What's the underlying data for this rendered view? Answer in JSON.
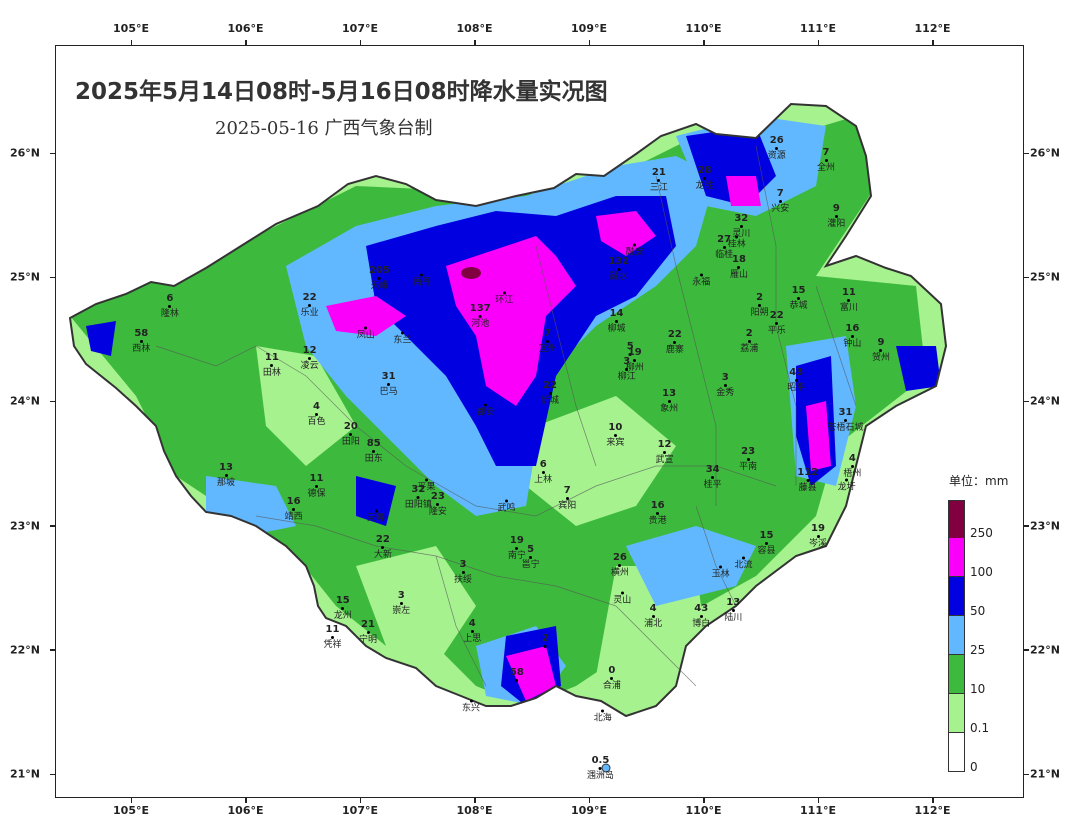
{
  "title": "2025年5月14日08时-5月16日08时降水量实况图",
  "subtitle": "2025-05-16  广西气象台制",
  "axes": {
    "lon_labels": [
      "105°E",
      "106°E",
      "107°E",
      "108°E",
      "109°E",
      "110°E",
      "111°E",
      "112°E"
    ],
    "lat_labels": [
      "26°N",
      "25°N",
      "24°N",
      "23°N",
      "22°N",
      "21°N"
    ]
  },
  "legend": {
    "unit_label": "单位：mm",
    "levels": [
      {
        "label": "0",
        "color": "#ffffff"
      },
      {
        "label": "0.1",
        "color": "#a6f28f"
      },
      {
        "label": "10",
        "color": "#3dba3d"
      },
      {
        "label": "25",
        "color": "#61b8ff"
      },
      {
        "label": "50",
        "color": "#0000e1"
      },
      {
        "label": "100",
        "color": "#fa00fa"
      },
      {
        "label": "250",
        "color": "#800040"
      }
    ]
  },
  "stations": [
    {
      "value": "26",
      "name": "资源",
      "lon": 110.64,
      "lat": 26.04
    },
    {
      "value": "7",
      "name": "全州",
      "lon": 111.07,
      "lat": 25.94
    },
    {
      "value": "21",
      "name": "三江",
      "lon": 109.61,
      "lat": 25.78
    },
    {
      "value": "28",
      "name": "龙胜",
      "lon": 110.01,
      "lat": 25.8
    },
    {
      "value": "7",
      "name": "兴安",
      "lon": 110.67,
      "lat": 25.61
    },
    {
      "value": "9",
      "name": "灌阳",
      "lon": 111.16,
      "lat": 25.49
    },
    {
      "value": "32",
      "name": "灵川",
      "lon": 110.33,
      "lat": 25.41
    },
    {
      "value": "27",
      "name": "临桂",
      "lon": 110.18,
      "lat": 25.24
    },
    {
      "value": "",
      "name": "桂林",
      "lon": 110.29,
      "lat": 25.28
    },
    {
      "value": "18",
      "name": "雁山",
      "lon": 110.31,
      "lat": 25.08
    },
    {
      "value": "132",
      "name": "融水",
      "lon": 109.26,
      "lat": 25.07
    },
    {
      "value": "",
      "name": "融安",
      "lon": 109.4,
      "lat": 25.22
    },
    {
      "value": "",
      "name": "永福",
      "lon": 109.98,
      "lat": 24.98
    },
    {
      "value": "15",
      "name": "恭城",
      "lon": 110.83,
      "lat": 24.83
    },
    {
      "value": "11",
      "name": "富川",
      "lon": 111.27,
      "lat": 24.82
    },
    {
      "value": "205",
      "name": "天峨",
      "lon": 107.17,
      "lat": 24.99
    },
    {
      "value": "",
      "name": "南丹",
      "lon": 107.54,
      "lat": 24.98
    },
    {
      "value": "137",
      "name": "河池",
      "lon": 108.05,
      "lat": 24.69
    },
    {
      "value": "",
      "name": "环江",
      "lon": 108.26,
      "lat": 24.83
    },
    {
      "value": "6",
      "name": "隆林",
      "lon": 105.34,
      "lat": 24.77
    },
    {
      "value": "22",
      "name": "乐业",
      "lon": 106.56,
      "lat": 24.78
    },
    {
      "value": "",
      "name": "凤山",
      "lon": 107.05,
      "lat": 24.55
    },
    {
      "value": "",
      "name": "东兰",
      "lon": 107.37,
      "lat": 24.51
    },
    {
      "value": "58",
      "name": "西林",
      "lon": 105.09,
      "lat": 24.49
    },
    {
      "value": "7",
      "name": "宜州",
      "lon": 108.64,
      "lat": 24.49
    },
    {
      "value": "14",
      "name": "柳城",
      "lon": 109.24,
      "lat": 24.65
    },
    {
      "value": "22",
      "name": "鹿寨",
      "lon": 109.75,
      "lat": 24.48
    },
    {
      "value": "2",
      "name": "阳朔",
      "lon": 110.49,
      "lat": 24.78
    },
    {
      "value": "22",
      "name": "平乐",
      "lon": 110.64,
      "lat": 24.63
    },
    {
      "value": "2",
      "name": "荔浦",
      "lon": 110.4,
      "lat": 24.49
    },
    {
      "value": "16",
      "name": "钟山",
      "lon": 111.3,
      "lat": 24.53
    },
    {
      "value": "9",
      "name": "贺州",
      "lon": 111.55,
      "lat": 24.41
    },
    {
      "value": "5",
      "name": "",
      "lon": 109.36,
      "lat": 24.42
    },
    {
      "value": "19",
      "name": "柳州",
      "lon": 109.4,
      "lat": 24.33
    },
    {
      "value": "3",
      "name": "柳江",
      "lon": 109.33,
      "lat": 24.26
    },
    {
      "value": "11",
      "name": "田林",
      "lon": 106.23,
      "lat": 24.29
    },
    {
      "value": "12",
      "name": "凌云",
      "lon": 106.56,
      "lat": 24.35
    },
    {
      "value": "31",
      "name": "巴马",
      "lon": 107.25,
      "lat": 24.14
    },
    {
      "value": "",
      "name": "都安",
      "lon": 108.1,
      "lat": 23.93
    },
    {
      "value": "22",
      "name": "忻城",
      "lon": 108.66,
      "lat": 24.07
    },
    {
      "value": "3",
      "name": "金秀",
      "lon": 110.19,
      "lat": 24.13
    },
    {
      "value": "43",
      "name": "昭平",
      "lon": 110.81,
      "lat": 24.17
    },
    {
      "value": "13",
      "name": "象州",
      "lon": 109.7,
      "lat": 24.0
    },
    {
      "value": "4",
      "name": "百色",
      "lon": 106.62,
      "lat": 23.9
    },
    {
      "value": "20",
      "name": "田阳",
      "lon": 106.92,
      "lat": 23.74
    },
    {
      "value": "85",
      "name": "田东",
      "lon": 107.12,
      "lat": 23.6
    },
    {
      "value": "",
      "name": "平果",
      "lon": 107.58,
      "lat": 23.33
    },
    {
      "value": "10",
      "name": "来宾",
      "lon": 109.23,
      "lat": 23.73
    },
    {
      "value": "12",
      "name": "武宣",
      "lon": 109.66,
      "lat": 23.59
    },
    {
      "value": "31",
      "name": "苍梧石城",
      "lon": 111.24,
      "lat": 23.85
    },
    {
      "value": "23",
      "name": "平南",
      "lon": 110.39,
      "lat": 23.54
    },
    {
      "value": "4",
      "name": "梧州",
      "lon": 111.3,
      "lat": 23.48
    },
    {
      "value": "112",
      "name": "藤县",
      "lon": 110.91,
      "lat": 23.37
    },
    {
      "value": "",
      "name": "龙圩",
      "lon": 111.25,
      "lat": 23.33
    },
    {
      "value": "13",
      "name": "那坡",
      "lon": 105.83,
      "lat": 23.41
    },
    {
      "value": "11",
      "name": "德保",
      "lon": 106.62,
      "lat": 23.32
    },
    {
      "value": "6",
      "name": "上林",
      "lon": 108.6,
      "lat": 23.43
    },
    {
      "value": "7",
      "name": "宾阳",
      "lon": 108.81,
      "lat": 23.22
    },
    {
      "value": "34",
      "name": "桂平",
      "lon": 110.08,
      "lat": 23.39
    },
    {
      "value": "32",
      "name": "田阳镇",
      "lon": 107.51,
      "lat": 23.23
    },
    {
      "value": "23",
      "name": "隆安",
      "lon": 107.68,
      "lat": 23.17
    },
    {
      "value": "",
      "name": "天等",
      "lon": 107.14,
      "lat": 23.08
    },
    {
      "value": "16",
      "name": "靖西",
      "lon": 106.42,
      "lat": 23.13
    },
    {
      "value": "",
      "name": "武鸣",
      "lon": 108.28,
      "lat": 23.16
    },
    {
      "value": "16",
      "name": "贵港",
      "lon": 109.6,
      "lat": 23.1
    },
    {
      "value": "19",
      "name": "岑溪",
      "lon": 111.0,
      "lat": 22.92
    },
    {
      "value": "22",
      "name": "大新",
      "lon": 107.2,
      "lat": 22.83
    },
    {
      "value": "19",
      "name": "南宁",
      "lon": 108.37,
      "lat": 22.82
    },
    {
      "value": "26",
      "name": "横州",
      "lon": 109.27,
      "lat": 22.68
    },
    {
      "value": "15",
      "name": "容县",
      "lon": 110.55,
      "lat": 22.86
    },
    {
      "value": "5",
      "name": "邕宁",
      "lon": 108.49,
      "lat": 22.75
    },
    {
      "value": "",
      "name": "玉林",
      "lon": 110.15,
      "lat": 22.63
    },
    {
      "value": "",
      "name": "北流",
      "lon": 110.35,
      "lat": 22.7
    },
    {
      "value": "3",
      "name": "扶绥",
      "lon": 107.9,
      "lat": 22.63
    },
    {
      "value": "15",
      "name": "龙州",
      "lon": 106.85,
      "lat": 22.34
    },
    {
      "value": "3",
      "name": "崇左",
      "lon": 107.36,
      "lat": 22.38
    },
    {
      "value": "",
      "name": "灵山",
      "lon": 109.29,
      "lat": 22.42
    },
    {
      "value": "43",
      "name": "博白",
      "lon": 109.98,
      "lat": 22.27
    },
    {
      "value": "13",
      "name": "陆川",
      "lon": 110.26,
      "lat": 22.32
    },
    {
      "value": "4",
      "name": "浦北",
      "lon": 109.56,
      "lat": 22.27
    },
    {
      "value": "21",
      "name": "宁明",
      "lon": 107.07,
      "lat": 22.14
    },
    {
      "value": "4",
      "name": "上思",
      "lon": 107.98,
      "lat": 22.15
    },
    {
      "value": "11",
      "name": "凭祥",
      "lon": 106.76,
      "lat": 22.1
    },
    {
      "value": "2",
      "name": "",
      "lon": 108.62,
      "lat": 22.07
    },
    {
      "value": "58",
      "name": "",
      "lon": 108.37,
      "lat": 21.8
    },
    {
      "value": "0",
      "name": "合浦",
      "lon": 109.2,
      "lat": 21.77
    },
    {
      "value": "",
      "name": "东兴",
      "lon": 107.97,
      "lat": 21.55
    },
    {
      "value": "",
      "name": "北海",
      "lon": 109.12,
      "lat": 21.47
    },
    {
      "value": "0.5",
      "name": "涠洲岛",
      "lon": 109.1,
      "lat": 21.05
    }
  ]
}
